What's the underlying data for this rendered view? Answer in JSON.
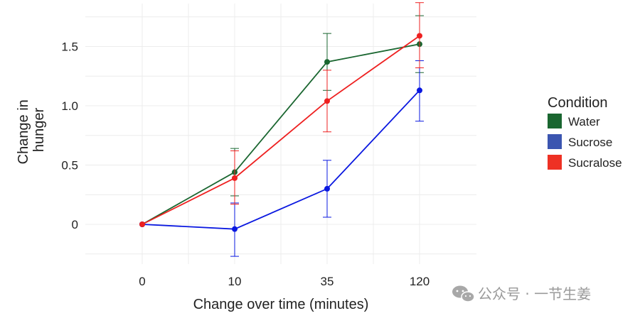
{
  "chart_data": {
    "type": "line",
    "title": "",
    "xlabel": "Change over time (minutes)",
    "ylabel_lines": [
      "Change in",
      "hunger"
    ],
    "x_categories": [
      "0",
      "10",
      "35",
      "120"
    ],
    "y_ticks": [
      0,
      0.5,
      1.0,
      1.5
    ],
    "y_tick_labels": [
      "0",
      "0.5",
      "1.0",
      "1.5"
    ],
    "ylim": [
      -0.25,
      1.8
    ],
    "grid": true,
    "legend": {
      "title": "Condition",
      "position": "right"
    },
    "series": [
      {
        "name": "Water",
        "color": "#1a6630",
        "line_color": "#1a6630",
        "values": [
          0,
          0.44,
          1.37,
          1.52
        ],
        "error_low": [
          0,
          0.24,
          1.13,
          1.28
        ],
        "error_high": [
          0,
          0.64,
          1.61,
          1.76
        ]
      },
      {
        "name": "Sucrose",
        "color": "#3b55b0",
        "line_color": "#0a18e0",
        "values": [
          0,
          -0.04,
          0.3,
          1.13
        ],
        "error_low": [
          0,
          -0.27,
          0.06,
          0.87
        ],
        "error_high": [
          0,
          0.18,
          0.54,
          1.38
        ]
      },
      {
        "name": "Sucralose",
        "color": "#ee3124",
        "line_color": "#ee2020",
        "values": [
          0,
          0.39,
          1.04,
          1.59
        ],
        "error_low": [
          0,
          0.17,
          0.78,
          1.32
        ],
        "error_high": [
          0,
          0.62,
          1.3,
          1.87
        ]
      }
    ]
  },
  "watermark": {
    "icon": "wechat-icon",
    "text": "公众号 · 一节生姜"
  }
}
